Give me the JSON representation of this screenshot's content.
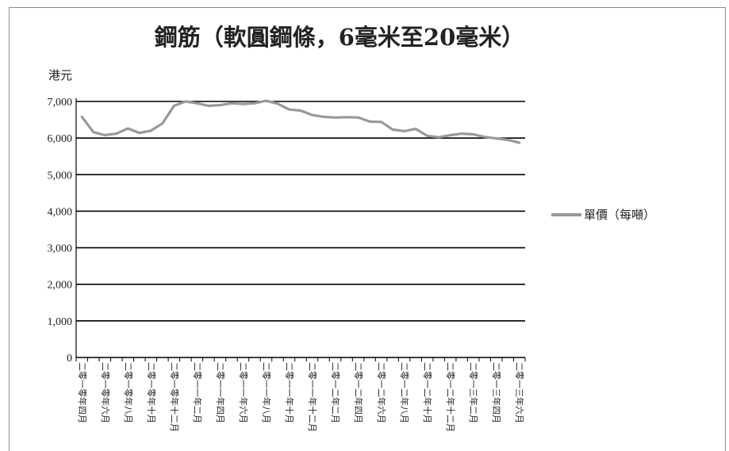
{
  "chart_data": {
    "type": "line",
    "title": "鋼筋（軟圓鋼條，6毫米至20毫米）",
    "ylabel": "港元",
    "xlabel": "",
    "ylim": [
      0,
      7000
    ],
    "yticks": [
      "7,000",
      "6,000",
      "5,000",
      "4,000",
      "3,000",
      "2,000",
      "1,000",
      "0"
    ],
    "grid": true,
    "legend_position": "right",
    "tick_labels": [
      "二零一零年四月",
      "二零一零年六月",
      "二零一零年八月",
      "二零一零年十月",
      "二零一零年十二月",
      "二零一一年二月",
      "二零一一年四月",
      "二零一一年六月",
      "二零一一年八月",
      "二零一一年十月",
      "二零一一年十二月",
      "二零一二年二月",
      "二零一二年四月",
      "二零一二年六月",
      "二零一二年八月",
      "二零一二年十月",
      "二零一二年十二月",
      "二零一三年二月",
      "二零一三年四月",
      "二零一三年六月"
    ],
    "x": [
      "2010-04",
      "2010-05",
      "2010-06",
      "2010-07",
      "2010-08",
      "2010-09",
      "2010-10",
      "2010-11",
      "2010-12",
      "2011-01",
      "2011-02",
      "2011-03",
      "2011-04",
      "2011-05",
      "2011-06",
      "2011-07",
      "2011-08",
      "2011-09",
      "2011-10",
      "2011-11",
      "2011-12",
      "2012-01",
      "2012-02",
      "2012-03",
      "2012-04",
      "2012-05",
      "2012-06",
      "2012-07",
      "2012-08",
      "2012-09",
      "2012-10",
      "2012-11",
      "2012-12",
      "2013-01",
      "2013-02",
      "2013-03",
      "2013-04",
      "2013-05",
      "2013-06"
    ],
    "series": [
      {
        "name": "單價（每噸）",
        "color": "#999999",
        "values": [
          6580,
          6160,
          6080,
          6120,
          6260,
          6140,
          6200,
          6400,
          6880,
          7000,
          6950,
          6880,
          6900,
          6950,
          6930,
          6950,
          7020,
          6940,
          6780,
          6750,
          6630,
          6580,
          6560,
          6570,
          6560,
          6450,
          6440,
          6230,
          6190,
          6250,
          6060,
          6020,
          6080,
          6120,
          6100,
          6030,
          5990,
          5950,
          5870
        ]
      }
    ]
  },
  "colors": {
    "line": "#999999",
    "grid": "#000000",
    "text": "#222222"
  }
}
